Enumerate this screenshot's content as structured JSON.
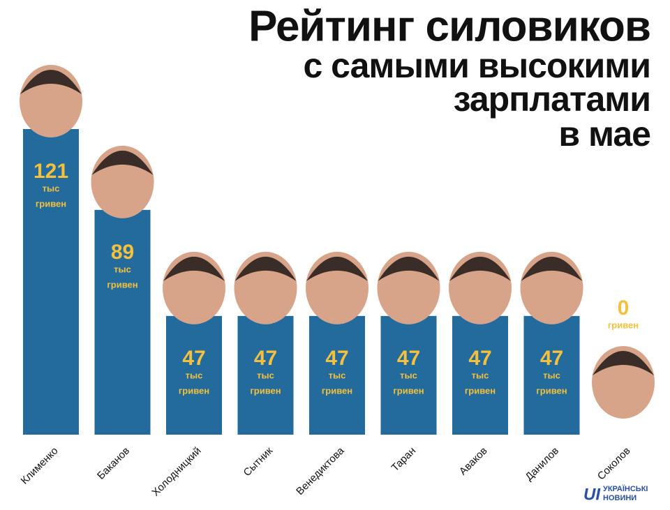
{
  "chart_data": {
    "type": "bar",
    "title": [
      "Рейтинг силовиков",
      "с самыми высокими",
      "зарплатами",
      "в мае"
    ],
    "categories": [
      "Клименко",
      "Баканов",
      "Холодницкий",
      "Сытник",
      "Венедиктова",
      "Таран",
      "Аваков",
      "Данилов",
      "Соколов"
    ],
    "values": [
      121,
      89,
      47,
      47,
      47,
      47,
      47,
      47,
      0
    ],
    "units": [
      [
        "тыс",
        "гривен"
      ],
      [
        "тыс",
        "гривен"
      ],
      [
        "тыс",
        "гривен"
      ],
      [
        "тыс",
        "гривен"
      ],
      [
        "тыс",
        "гривен"
      ],
      [
        "тыс",
        "гривен"
      ],
      [
        "тыс",
        "гривен"
      ],
      [
        "тыс",
        "гривен"
      ],
      [
        "гривен"
      ]
    ],
    "color": "#226b9c",
    "label_color": "#f4c03e",
    "logo": [
      "УКРАЇНСЬКІ",
      "НОВИНИ"
    ]
  }
}
